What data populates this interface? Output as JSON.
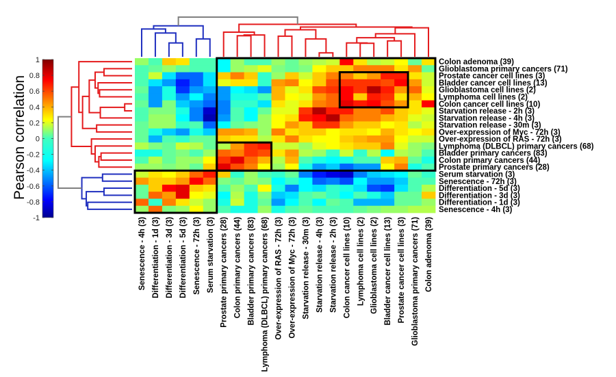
{
  "chart_data": {
    "type": "heatmap",
    "title": "",
    "colorbar": {
      "label": "Pearson correlation",
      "range": [
        -1,
        1
      ],
      "ticks": [
        "1",
        "0.8",
        "0.6",
        "0.4",
        "0.2",
        "0",
        "-0.2",
        "-0.4",
        "-0.6",
        "-0.8",
        "-1"
      ],
      "tick_values": [
        1,
        0.8,
        0.6,
        0.4,
        0.2,
        0,
        -0.2,
        -0.4,
        -0.6,
        -0.8,
        -1
      ],
      "colormap": "jet"
    },
    "columns": [
      "Senescence - 4h (3)",
      "Differentiation - 1d (3)",
      "Differentiation - 3d (3)",
      "Differentiation - 5d (3)",
      "Senescence - 72h (3)",
      "Serum starvation (3)",
      "Prostate primary cancers (28)",
      "Colon primary cancers (44)",
      "Bladder primary cancers (83)",
      "Lymphoma (DLBCL) primary cancers (68)",
      "Over-expression of RAS - 72h (3)",
      "Over-expression of Myc - 72h (3)",
      "Starvation release - 30m (3)",
      "Starvation release - 4h (3)",
      "Starvation release - 2h (3)",
      "Colon cancer cell lines (10)",
      "Lymphoma cell lines (2)",
      "Glioblastoma cell lines (2)",
      "Bladder cancer cell lines (13)",
      "Prostate cancer cell lines (3)",
      "Glioblastoma primary cancers (71)",
      "Colon adenoma (39)"
    ],
    "rows": [
      "Colon adenoma (39)",
      "Glioblastoma primary cancers (71)",
      "Prostate cancer cell lines (3)",
      "Bladder cancer cell lines (13)",
      "Glioblastoma cell lines (2)",
      "Lymphoma cell lines (2)",
      "Colon cancer cell lines (10)",
      "Starvation release - 2h (3)",
      "Starvation release - 4h (3)",
      "Starvation release - 30m (3)",
      "Over-expression of Myc - 72h (3)",
      "Over-expression of RAS - 72h (3)",
      "Lymphoma (DLBCL) primary cancers (68)",
      "Bladder primary cancers (83)",
      "Colon primary cancers (44)",
      "Prostate primary cancers (28)",
      "Serum starvation (3)",
      "Senescence - 72h (3)",
      "Differentiation - 5d (3)",
      "Differentiation - 3d (3)",
      "Differentiation - 1d (3)",
      "Senescence - 4h (3)"
    ],
    "values": [
      [
        0.05,
        -0.1,
        0.35,
        0.3,
        -0.1,
        -0.1,
        -0.25,
        0.05,
        -0.1,
        -0.1,
        0.05,
        -0.05,
        0.05,
        0.1,
        0.15,
        0.75,
        0.3,
        0.1,
        0.15,
        0.25,
        -0.05,
        0.3
      ],
      [
        -0.1,
        -0.05,
        0.05,
        -0.05,
        -0.1,
        -0.1,
        -0.25,
        0.05,
        0.1,
        0.2,
        0.0,
        -0.05,
        0.0,
        0.25,
        0.35,
        0.35,
        0.5,
        0.5,
        0.5,
        0.3,
        0.45,
        -0.05
      ],
      [
        -0.1,
        0.15,
        -0.3,
        -0.55,
        -0.55,
        -0.3,
        0.35,
        0.5,
        0.35,
        -0.15,
        0.05,
        0.35,
        0.15,
        0.35,
        0.5,
        0.5,
        0.35,
        0.45,
        0.7,
        0.7,
        0.3,
        0.15
      ],
      [
        -0.1,
        -0.3,
        -0.45,
        -0.7,
        -0.55,
        -0.3,
        0.2,
        0.3,
        0.3,
        -0.15,
        0.45,
        0.5,
        0.25,
        0.35,
        0.6,
        0.65,
        0.65,
        0.65,
        0.6,
        0.75,
        0.45,
        0.15
      ],
      [
        -0.05,
        -0.45,
        -0.2,
        -0.65,
        -0.45,
        -0.4,
        -0.45,
        -0.25,
        -0.3,
        -0.45,
        0.4,
        0.2,
        0.3,
        0.6,
        0.65,
        0.75,
        0.65,
        0.9,
        0.7,
        0.45,
        0.55,
        0.2
      ],
      [
        -0.1,
        -0.45,
        -0.2,
        -0.45,
        -0.25,
        -0.5,
        -0.45,
        -0.2,
        -0.2,
        -0.1,
        0.4,
        0.25,
        0.2,
        0.45,
        0.55,
        0.75,
        0.35,
        0.7,
        0.65,
        0.3,
        0.4,
        0.25
      ],
      [
        -0.05,
        -0.45,
        0.0,
        -0.35,
        -0.45,
        -0.55,
        -0.5,
        -0.15,
        -0.15,
        -0.3,
        0.3,
        0.2,
        0.3,
        0.5,
        0.55,
        0.8,
        0.7,
        0.75,
        0.6,
        0.45,
        0.3,
        0.75
      ],
      [
        -0.1,
        0.0,
        0.0,
        -0.2,
        -0.5,
        -0.85,
        -0.5,
        -0.1,
        -0.25,
        -0.05,
        0.2,
        0.2,
        0.65,
        0.9,
        0.7,
        0.7,
        0.5,
        0.5,
        0.6,
        0.35,
        0.3,
        0.2
      ],
      [
        -0.1,
        0.05,
        0.05,
        -0.25,
        -0.5,
        -0.9,
        -0.45,
        -0.1,
        -0.25,
        0.05,
        0.25,
        0.3,
        0.7,
        0.75,
        0.9,
        0.55,
        0.5,
        0.5,
        0.4,
        0.35,
        0.2,
        0.15
      ],
      [
        -0.05,
        0.05,
        0.05,
        -0.15,
        -0.1,
        -0.55,
        -0.25,
        -0.05,
        0.0,
        0.05,
        0.25,
        0.45,
        0.35,
        0.65,
        0.65,
        0.45,
        0.35,
        0.35,
        0.25,
        0.3,
        0.1,
        0.2
      ],
      [
        -0.05,
        -0.2,
        -0.35,
        -0.45,
        -0.2,
        -0.35,
        0.45,
        0.45,
        0.4,
        0.05,
        0.5,
        0.3,
        0.35,
        0.35,
        0.25,
        0.3,
        0.3,
        0.25,
        0.4,
        0.3,
        0.25,
        0.3
      ],
      [
        -0.05,
        -0.4,
        -0.1,
        -0.15,
        -0.05,
        -0.05,
        0.35,
        0.3,
        0.3,
        0.1,
        0.3,
        0.5,
        0.3,
        0.25,
        0.25,
        0.35,
        0.4,
        0.45,
        0.45,
        0.25,
        0.15,
        0.15
      ],
      [
        0.1,
        0.0,
        -0.05,
        0.15,
        0.1,
        -0.05,
        0.1,
        0.45,
        0.65,
        0.7,
        0.15,
        0.15,
        0.05,
        0.2,
        0.25,
        0.3,
        0.35,
        0.35,
        0.5,
        0.2,
        0.05,
        0.0
      ],
      [
        -0.2,
        -0.2,
        -0.05,
        0.0,
        -0.1,
        0.05,
        0.55,
        0.5,
        0.65,
        0.6,
        0.3,
        0.45,
        0.1,
        0.05,
        -0.15,
        0.15,
        -0.15,
        0.1,
        -0.25,
        0.1,
        0.05,
        -0.1
      ],
      [
        -0.1,
        0.1,
        -0.05,
        0.05,
        0.05,
        0.25,
        0.65,
        0.8,
        0.55,
        0.4,
        0.1,
        0.4,
        -0.1,
        -0.2,
        -0.25,
        -0.2,
        -0.1,
        -0.1,
        0.35,
        0.4,
        -0.05,
        -0.2
      ],
      [
        0.05,
        0.05,
        0.0,
        0.05,
        -0.05,
        0.35,
        0.8,
        0.6,
        0.5,
        0.25,
        0.05,
        0.25,
        -0.2,
        -0.45,
        -0.35,
        -0.55,
        -0.45,
        -0.45,
        0.25,
        0.5,
        -0.2,
        -0.1
      ],
      [
        0.15,
        0.3,
        0.25,
        0.35,
        0.55,
        0.7,
        0.35,
        -0.15,
        0.05,
        -0.1,
        -0.15,
        -0.05,
        -0.5,
        -0.7,
        -0.8,
        -0.85,
        -0.5,
        -0.35,
        -0.3,
        -0.25,
        -0.05,
        -0.15
      ],
      [
        0.45,
        0.35,
        0.35,
        0.45,
        0.75,
        0.55,
        0.0,
        -0.05,
        0.05,
        0.0,
        -0.25,
        -0.15,
        -0.25,
        -0.55,
        -0.5,
        -0.6,
        -0.25,
        -0.45,
        -0.45,
        -0.35,
        -0.1,
        -0.1
      ],
      [
        -0.05,
        0.35,
        0.75,
        0.8,
        0.35,
        0.3,
        -0.1,
        0.05,
        -0.1,
        0.25,
        -0.2,
        -0.5,
        -0.25,
        -0.3,
        -0.15,
        -0.2,
        -0.3,
        -0.6,
        -0.65,
        -0.3,
        -0.1,
        0.1
      ],
      [
        -0.05,
        0.55,
        0.45,
        0.8,
        0.25,
        0.2,
        -0.25,
        0.1,
        -0.2,
        0.0,
        -0.35,
        -0.3,
        -0.1,
        -0.05,
        -0.15,
        -0.25,
        -0.1,
        -0.2,
        -0.35,
        -0.05,
        -0.05,
        0.35
      ],
      [
        0.55,
        -0.15,
        0.5,
        0.3,
        0.15,
        0.05,
        -0.2,
        0.15,
        -0.2,
        -0.05,
        -0.45,
        -0.25,
        -0.1,
        -0.25,
        -0.05,
        -0.1,
        -0.4,
        -0.4,
        -0.4,
        -0.05,
        -0.05,
        0.05
      ],
      [
        0.05,
        0.55,
        0.0,
        0.05,
        0.25,
        0.05,
        -0.1,
        -0.2,
        -0.2,
        0.05,
        -0.2,
        -0.1,
        -0.05,
        -0.1,
        -0.1,
        -0.1,
        -0.05,
        0.0,
        0.05,
        0.05,
        0.1,
        0.1
      ]
    ],
    "highlight_boxes": [
      {
        "name": "proliferation-cluster",
        "rows": [
          0,
          15
        ],
        "cols": [
          6,
          21
        ]
      },
      {
        "name": "cell-lines-cluster",
        "rows": [
          2,
          6
        ],
        "cols": [
          15,
          19
        ]
      },
      {
        "name": "primary-cancers-cluster",
        "rows": [
          12,
          15
        ],
        "cols": [
          6,
          9
        ]
      },
      {
        "name": "growth-arrest-cluster",
        "rows": [
          16,
          21
        ],
        "cols": [
          0,
          5
        ]
      }
    ],
    "dendrogram_colors": {
      "cluster_a": "#e41a1c",
      "cluster_b": "#1f2fbf",
      "root": "#7f7f7f"
    },
    "grid": false,
    "legend": "left"
  }
}
